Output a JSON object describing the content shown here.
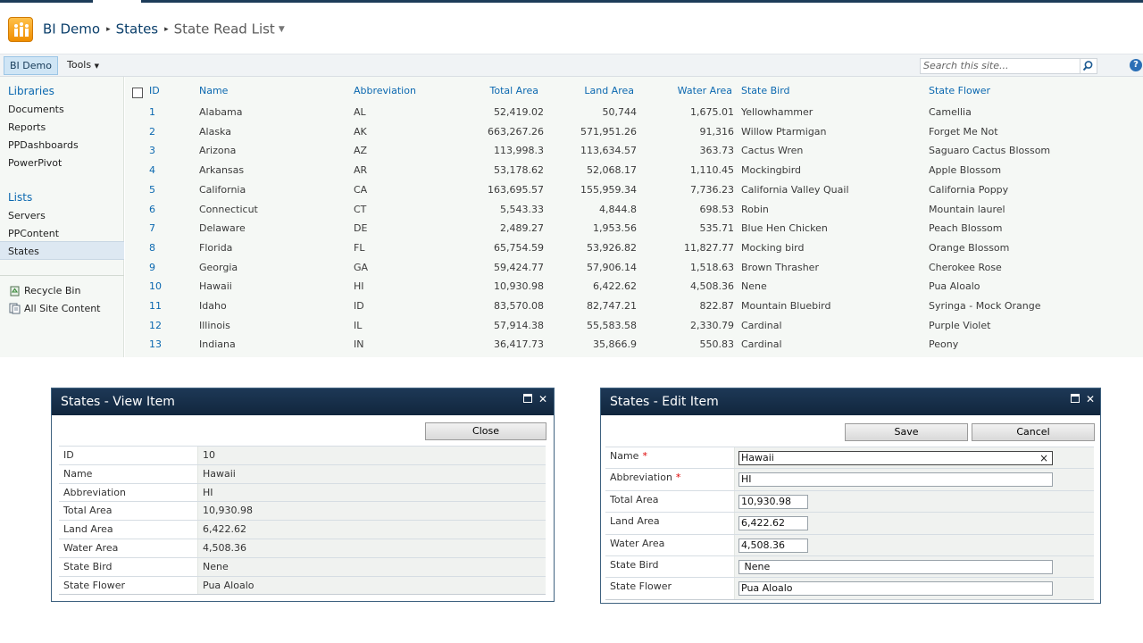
{
  "breadcrumb": {
    "site": "BI Demo",
    "list": "States",
    "view": "State Read List"
  },
  "ribbon": {
    "site_tab": "BI Demo",
    "tools": "Tools",
    "search_placeholder": "Search this site..."
  },
  "nav": {
    "libraries_heading": "Libraries",
    "libraries": [
      "Documents",
      "Reports",
      "PPDashboards",
      "PowerPivot"
    ],
    "lists_heading": "Lists",
    "lists": [
      "Servers",
      "PPContent",
      "States"
    ],
    "recycle_bin": "Recycle Bin",
    "all_site_content": "All Site Content"
  },
  "list": {
    "columns": [
      "ID",
      "Name",
      "Abbreviation",
      "Total Area",
      "Land Area",
      "Water Area",
      "State Bird",
      "State Flower"
    ],
    "rows": [
      [
        "1",
        "Alabama",
        "AL",
        "52,419.02",
        "50,744",
        "1,675.01",
        "Yellowhammer",
        "Camellia"
      ],
      [
        "2",
        "Alaska",
        "AK",
        "663,267.26",
        "571,951.26",
        "91,316",
        "Willow Ptarmigan",
        "Forget Me Not"
      ],
      [
        "3",
        "Arizona",
        "AZ",
        "113,998.3",
        "113,634.57",
        "363.73",
        "Cactus Wren",
        "Saguaro Cactus Blossom"
      ],
      [
        "4",
        "Arkansas",
        "AR",
        "53,178.62",
        "52,068.17",
        "1,110.45",
        "Mockingbird",
        "Apple Blossom"
      ],
      [
        "5",
        "California",
        "CA",
        "163,695.57",
        "155,959.34",
        "7,736.23",
        "California Valley Quail",
        "California Poppy"
      ],
      [
        "6",
        "Connecticut",
        "CT",
        "5,543.33",
        "4,844.8",
        "698.53",
        "Robin",
        "Mountain laurel"
      ],
      [
        "7",
        "Delaware",
        "DE",
        "2,489.27",
        "1,953.56",
        "535.71",
        "Blue Hen Chicken",
        "Peach Blossom"
      ],
      [
        "8",
        "Florida",
        "FL",
        "65,754.59",
        "53,926.82",
        "11,827.77",
        "Mocking bird",
        "Orange Blossom"
      ],
      [
        "9",
        "Georgia",
        "GA",
        "59,424.77",
        "57,906.14",
        "1,518.63",
        "Brown Thrasher",
        "Cherokee Rose"
      ],
      [
        "10",
        "Hawaii",
        "HI",
        "10,930.98",
        "6,422.62",
        "4,508.36",
        "Nene",
        "Pua Aloalo"
      ],
      [
        "11",
        "Idaho",
        "ID",
        "83,570.08",
        "82,747.21",
        "822.87",
        "Mountain Bluebird",
        "Syringa - Mock Orange"
      ],
      [
        "12",
        "Illinois",
        "IL",
        "57,914.38",
        "55,583.58",
        "2,330.79",
        "Cardinal",
        "Purple Violet"
      ],
      [
        "13",
        "Indiana",
        "IN",
        "36,417.73",
        "35,866.9",
        "550.83",
        "Cardinal",
        "Peony"
      ]
    ]
  },
  "view_dialog": {
    "title": "States - View Item",
    "close_label": "Close",
    "fields": [
      {
        "label": "ID",
        "value": "10"
      },
      {
        "label": "Name",
        "value": "Hawaii"
      },
      {
        "label": "Abbreviation",
        "value": "HI"
      },
      {
        "label": "Total Area",
        "value": "10,930.98"
      },
      {
        "label": "Land Area",
        "value": "6,422.62"
      },
      {
        "label": "Water Area",
        "value": "4,508.36"
      },
      {
        "label": "State Bird",
        "value": "Nene"
      },
      {
        "label": "State Flower",
        "value": "Pua Aloalo"
      }
    ]
  },
  "edit_dialog": {
    "title": "States - Edit Item",
    "save_label": "Save",
    "cancel_label": "Cancel",
    "required_marker": "*",
    "clear_glyph": "×",
    "fields": [
      {
        "label": "Name",
        "value": "Hawaii",
        "required": true
      },
      {
        "label": "Abbreviation",
        "value": "HI",
        "required": true
      },
      {
        "label": "Total Area",
        "value": "10,930.98"
      },
      {
        "label": "Land Area",
        "value": "6,422.62"
      },
      {
        "label": "Water Area",
        "value": "4,508.36"
      },
      {
        "label": "State Bird",
        "value": " Nene"
      },
      {
        "label": "State Flower",
        "value": "Pua Aloalo"
      }
    ]
  },
  "colors": {
    "link_blue": "#0b68b0",
    "dialog_title_bg": "#1d3856",
    "nav_selected_bg": "#dde8f2",
    "required_red": "#dd0000"
  }
}
